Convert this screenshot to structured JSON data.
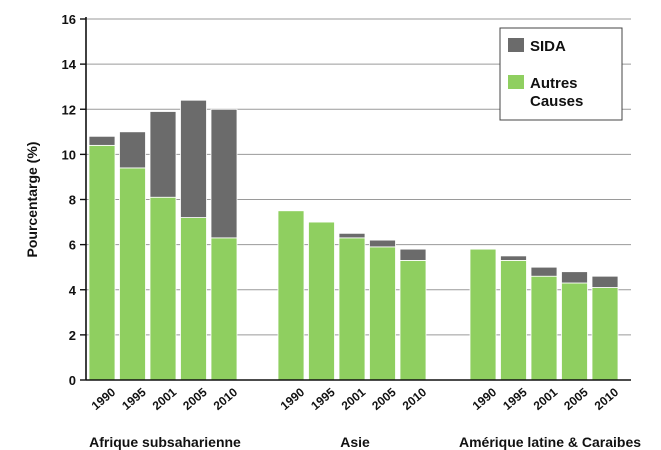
{
  "chart_data": {
    "type": "bar",
    "stacked": true,
    "ylabel": "Pourcentarge (%)",
    "ylim": [
      0,
      16
    ],
    "yticks": [
      0,
      2,
      4,
      6,
      8,
      10,
      12,
      14,
      16
    ],
    "grid": true,
    "legend_position": "top-right",
    "groups": [
      {
        "name": "Afrique subsaharienne",
        "categories": [
          "1990",
          "1995",
          "2001",
          "2005",
          "2010"
        ],
        "autres_causes": [
          10.4,
          9.4,
          8.1,
          7.2,
          6.3
        ],
        "sida": [
          0.4,
          1.6,
          3.8,
          5.2,
          5.7
        ]
      },
      {
        "name": "Asie",
        "categories": [
          "1990",
          "1995",
          "2001",
          "2005",
          "2010"
        ],
        "autres_causes": [
          7.5,
          7.0,
          6.3,
          5.9,
          5.3
        ],
        "sida": [
          0.0,
          0.0,
          0.2,
          0.3,
          0.5
        ]
      },
      {
        "name": "Amérique latine & Caraibes",
        "categories": [
          "1990",
          "1995",
          "2001",
          "2005",
          "2010"
        ],
        "autres_causes": [
          5.8,
          5.3,
          4.6,
          4.3,
          4.1
        ],
        "sida": [
          0.0,
          0.2,
          0.4,
          0.5,
          0.5
        ]
      }
    ],
    "series": [
      {
        "key": "sida",
        "name": "SIDA",
        "color": "#6b6b6b"
      },
      {
        "key": "autres_causes",
        "name": "Autres Causes",
        "color": "#8fcf60"
      }
    ]
  }
}
